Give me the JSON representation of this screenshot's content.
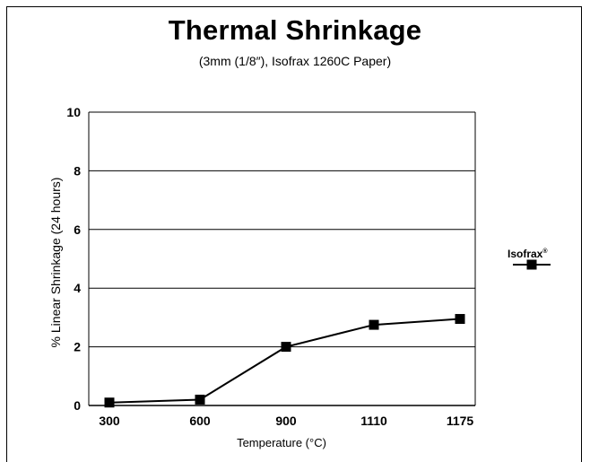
{
  "chart_data": {
    "type": "line",
    "title": "Thermal Shrinkage",
    "subtitle": "(3mm (1/8″), Isofrax 1260C Paper)",
    "xlabel": "Temperature (°C)",
    "ylabel": "% Linear Shrinkage (24 hours)",
    "categories": [
      "300",
      "600",
      "900",
      "1110",
      "1175"
    ],
    "ylim": [
      0,
      10
    ],
    "yticks": [
      "0",
      "2",
      "4",
      "6",
      "8",
      "10"
    ],
    "grid": "horizontal",
    "legend_position": "right",
    "series": [
      {
        "name": "Isofrax",
        "name_mark": "®",
        "values": [
          0.1,
          0.2,
          2.0,
          2.75,
          2.95
        ],
        "marker": "square",
        "color": "#000000"
      }
    ]
  }
}
